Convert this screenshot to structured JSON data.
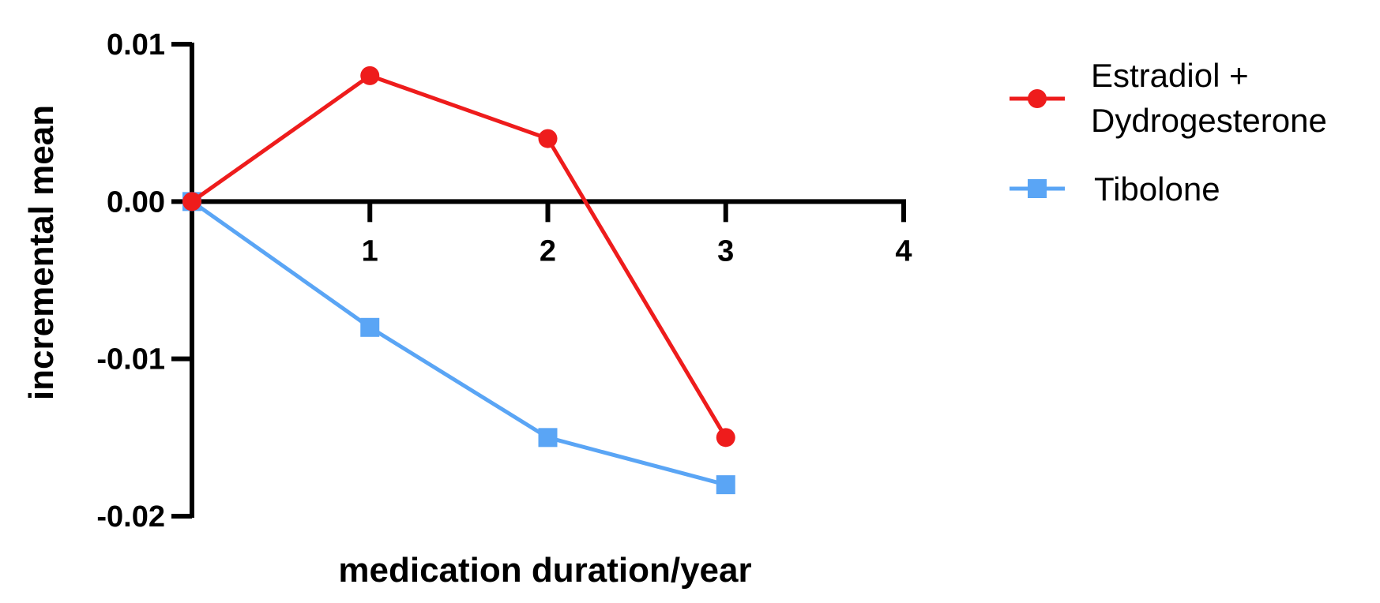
{
  "chart_data": {
    "type": "line",
    "xlabel": "medication duration/year",
    "ylabel": "incremental mean",
    "xlim": [
      0,
      4
    ],
    "ylim": [
      -0.02,
      0.01
    ],
    "x_ticks": [
      "1",
      "2",
      "3",
      "4"
    ],
    "y_ticks": [
      "0.01",
      "0.00",
      "-0.01",
      "-0.02"
    ],
    "grid": false,
    "legend_position": "right",
    "series": [
      {
        "name_lines": [
          "Estradiol +",
          "Dydrogesterone"
        ],
        "color": "#ee1c1c",
        "marker": "circle",
        "x": [
          0,
          1,
          2,
          3
        ],
        "y": [
          0.0,
          0.008,
          0.004,
          -0.015
        ]
      },
      {
        "name_lines": [
          "Tibolone"
        ],
        "color": "#5aa5f5",
        "marker": "square",
        "x": [
          0,
          1,
          2,
          3
        ],
        "y": [
          0.0,
          -0.008,
          -0.015,
          -0.018
        ]
      }
    ]
  }
}
